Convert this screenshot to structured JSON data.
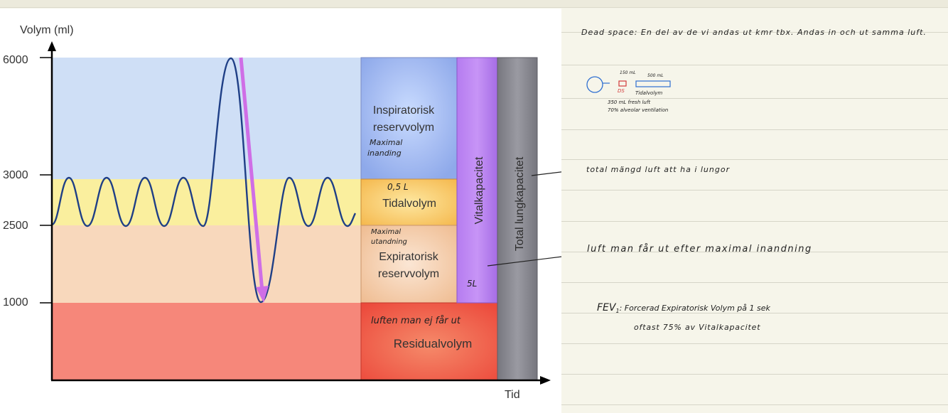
{
  "diagram": {
    "y_axis_label": "Volym (ml)",
    "x_axis_label": "Tid",
    "ticks": [
      {
        "label": "6000",
        "value": 6000
      },
      {
        "label": "3000",
        "value": 3000
      },
      {
        "label": "2500",
        "value": 2500
      },
      {
        "label": "1000",
        "value": 1000
      }
    ],
    "zone_colors": {
      "inspiratory": "#cfdff6",
      "tidal": "#faef9e",
      "expiratory": "#f8d8bc",
      "residual": "#f6877a"
    },
    "boxes": {
      "inspiratorisk": [
        "Inspiratorisk",
        "reservvolym"
      ],
      "tidal": "Tidalvolym",
      "expiratorisk": [
        "Expiratorisk",
        "reservvolym"
      ],
      "residual": "Residualvolym",
      "vital": "Vitalkapacitet",
      "total": "Total lungkapacitet"
    },
    "annotations": {
      "maximal_inandning": [
        "Maximal",
        "inanding"
      ],
      "tidal_value": "0,5 L",
      "maximal_utandning": [
        "Maximal",
        "utandning"
      ],
      "vital_value": "5L",
      "residual_note": "luften man ej får ut"
    },
    "arrow_color": "#cf6ee6",
    "curve_color": "#1f3f86"
  },
  "notes": {
    "dead_space": "Dead space:  En del av de vi andas ut kmr tbx. Andas in och ut samma luft.",
    "sketch": {
      "top_label_1": "150 mL",
      "top_label_2": "500 mL",
      "ds": "DS",
      "tidalvolym": "Tidalvolym",
      "fresh": "350 mL fresh luft",
      "alveolar": "70% alveolar ventilation"
    },
    "total_note": "total mängd luft att ha i lungor",
    "vital_note": "luft man får ut efter maximal inandning",
    "fev_title": "FEV",
    "fev_sub": "1",
    "fev_text": ":   Forcerad Expiratorisk Volym på 1 sek",
    "fev_line2": "oftast 75% av Vitalkapacitet"
  }
}
